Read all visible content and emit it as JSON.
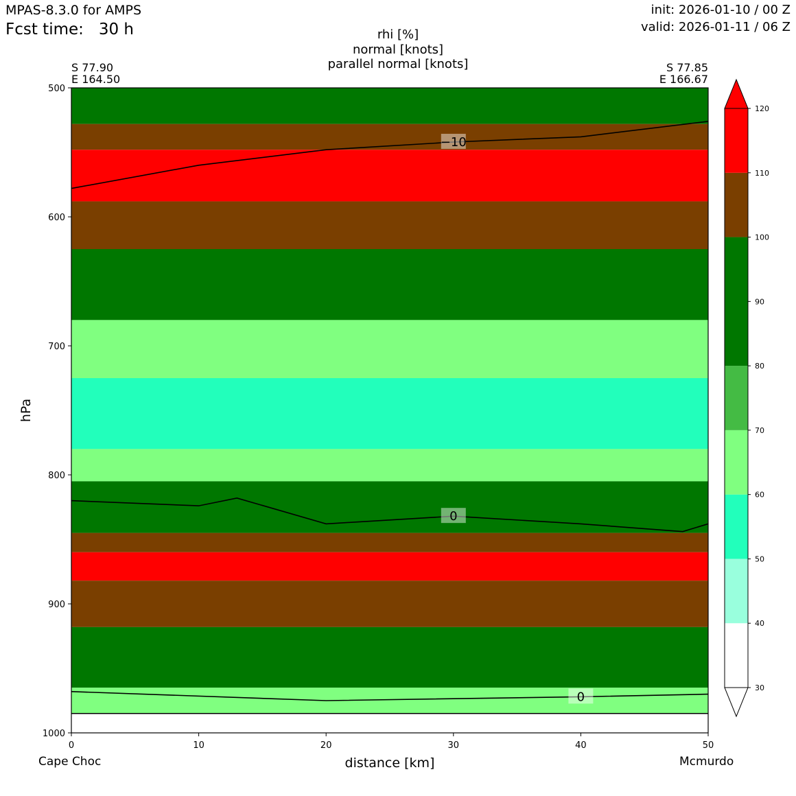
{
  "header": {
    "model": "MPAS-8.3.0 for AMPS",
    "fcst_label": "Fcst time:",
    "fcst_value": "30 h",
    "init": "init: 2026-01-10 / 00 Z",
    "valid": "valid: 2026-01-11 / 06 Z"
  },
  "chart_data": {
    "type": "heatmap",
    "title_lines": [
      "rhi [%]",
      "normal [knots]",
      "parallel normal [knots]"
    ],
    "xlabel": "distance [km]",
    "ylabel": "hPa",
    "xlim": [
      0,
      50
    ],
    "ylim": [
      1000,
      500
    ],
    "x_ticks": [
      0,
      10,
      20,
      30,
      40,
      50
    ],
    "y_ticks": [
      500,
      600,
      700,
      800,
      900,
      1000
    ],
    "start_point": {
      "lat": "S 77.90",
      "lon": "E 164.50",
      "name": "Cape Choc"
    },
    "end_point": {
      "lat": "S 77.85",
      "lon": "E 166.67",
      "name": "Mcmurdo"
    },
    "colorbar": {
      "ticks": [
        30,
        40,
        50,
        60,
        70,
        80,
        90,
        100,
        110,
        120
      ],
      "levels": [
        {
          "from": 30,
          "to": 40,
          "color": "#ffffff"
        },
        {
          "from": 40,
          "to": 50,
          "color": "#99ffdd"
        },
        {
          "from": 50,
          "to": 60,
          "color": "#22ffbb"
        },
        {
          "from": 60,
          "to": 70,
          "color": "#80ff80"
        },
        {
          "from": 70,
          "to": 80,
          "color": "#44bb44"
        },
        {
          "from": 80,
          "to": 100,
          "color": "#007700"
        },
        {
          "from": 100,
          "to": 110,
          "color": "#7a3f00"
        },
        {
          "from": 110,
          "to": 120,
          "color": "#ff0000"
        }
      ]
    },
    "rhi_bands": [
      {
        "p_top": 500,
        "p_bot": 528,
        "rhi": 85
      },
      {
        "p_top": 528,
        "p_bot": 548,
        "rhi": 105
      },
      {
        "p_top": 548,
        "p_bot": 588,
        "rhi": 115
      },
      {
        "p_top": 588,
        "p_bot": 625,
        "rhi": 105
      },
      {
        "p_top": 625,
        "p_bot": 680,
        "rhi": 88
      },
      {
        "p_top": 680,
        "p_bot": 725,
        "rhi": 65
      },
      {
        "p_top": 725,
        "p_bot": 780,
        "rhi": 55
      },
      {
        "p_top": 780,
        "p_bot": 805,
        "rhi": 65
      },
      {
        "p_top": 805,
        "p_bot": 845,
        "rhi": 88
      },
      {
        "p_top": 845,
        "p_bot": 860,
        "rhi": 105
      },
      {
        "p_top": 860,
        "p_bot": 882,
        "rhi": 115
      },
      {
        "p_top": 882,
        "p_bot": 918,
        "rhi": 105
      },
      {
        "p_top": 918,
        "p_bot": 965,
        "rhi": 88
      },
      {
        "p_top": 965,
        "p_bot": 985,
        "rhi": 65
      }
    ],
    "contours": [
      {
        "label": "−10",
        "points": [
          [
            0,
            578
          ],
          [
            10,
            560
          ],
          [
            20,
            548
          ],
          [
            30,
            542
          ],
          [
            40,
            538
          ],
          [
            50,
            526
          ]
        ]
      },
      {
        "label": "0",
        "points": [
          [
            0,
            820
          ],
          [
            10,
            824
          ],
          [
            13,
            818
          ],
          [
            20,
            838
          ],
          [
            30,
            832
          ],
          [
            40,
            838
          ],
          [
            48,
            844
          ],
          [
            50,
            838
          ]
        ]
      },
      {
        "label": "0",
        "points": [
          [
            0,
            968
          ],
          [
            20,
            975
          ],
          [
            40,
            972
          ],
          [
            50,
            970
          ]
        ]
      }
    ],
    "terrain_p": 985
  }
}
